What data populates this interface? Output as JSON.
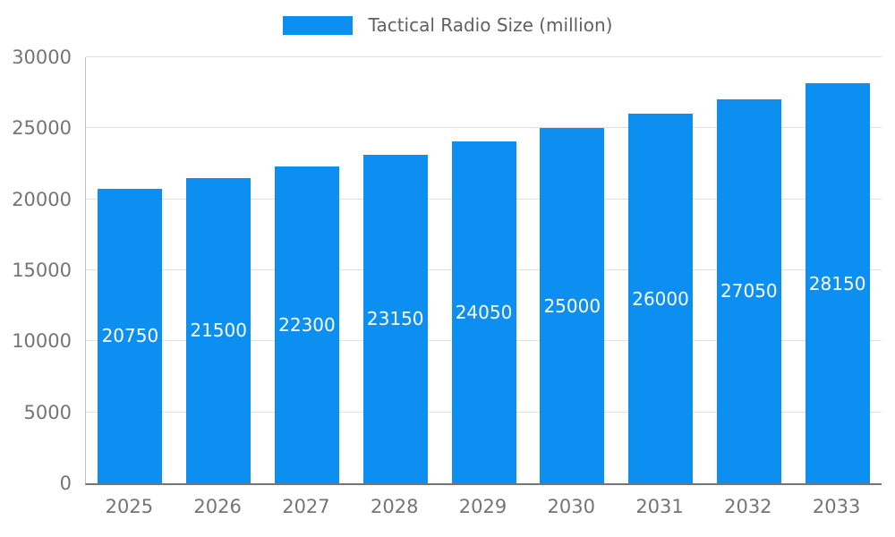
{
  "chart_data": {
    "type": "bar",
    "title": "Tactical Radio Size (million)",
    "categories": [
      "2025",
      "2026",
      "2027",
      "2028",
      "2029",
      "2030",
      "2031",
      "2032",
      "2033"
    ],
    "series": [
      {
        "name": "Tactical Radio Size (million)",
        "values": [
          20750,
          21500,
          22300,
          23150,
          24050,
          25000,
          26000,
          27050,
          28150
        ]
      }
    ],
    "values": [
      20750,
      21500,
      22300,
      23150,
      24050,
      25000,
      26000,
      27050,
      28150
    ],
    "xlabel": "",
    "ylabel": "",
    "ylim": [
      0,
      30000
    ],
    "yticks": [
      0,
      5000,
      10000,
      15000,
      20000,
      25000,
      30000
    ],
    "grid": true,
    "legend_position": "top-center",
    "bar_labels_inside": true,
    "colors": {
      "bar": "#0d8ff2",
      "bar_label": "#ffffff",
      "axis_text": "#757575",
      "legend_text": "#616161",
      "gridline": "#e0e0e0",
      "axis_line": "#c0c0c0",
      "axis_strong": "#757575",
      "background": "#ffffff"
    }
  }
}
